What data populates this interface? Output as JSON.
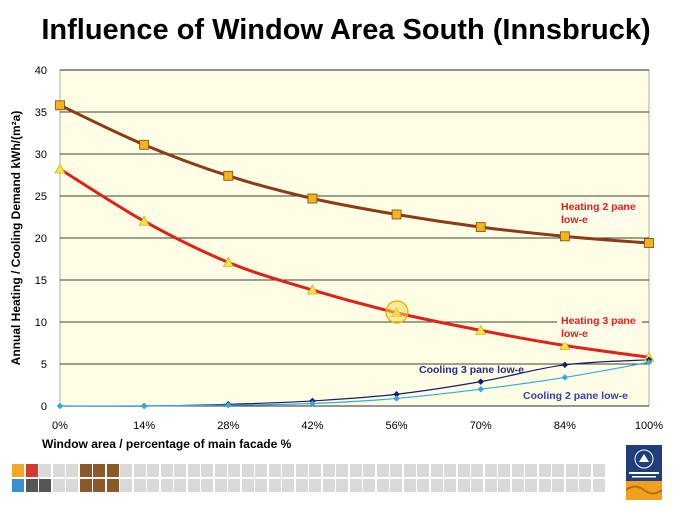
{
  "title": "Influence of Window Area South (Innsbruck)",
  "chart_data": {
    "type": "line",
    "x_ticks": [
      "0%",
      "14%",
      "28%",
      "42%",
      "56%",
      "70%",
      "84%",
      "100%"
    ],
    "xlabel": "Window area / percentage of main facade %",
    "ylabel": "Annual Heating / Cooling Demand kWh/(m²a)",
    "ylim": [
      0,
      40
    ],
    "y_ticks": [
      0,
      5,
      10,
      15,
      20,
      25,
      30,
      35,
      40
    ],
    "grid": true,
    "series": [
      {
        "name": "Heating 2 pane low-e",
        "color": "#8b3a1a",
        "marker": "square",
        "values": [
          35.8,
          31.1,
          27.4,
          24.7,
          22.8,
          21.3,
          20.2,
          19.4
        ]
      },
      {
        "name": "Heating 3 pane low-e",
        "color": "#e0201a",
        "marker": "triangle",
        "values": [
          28.2,
          22.0,
          17.1,
          13.8,
          11.1,
          9.0,
          7.2,
          5.8
        ]
      },
      {
        "name": "Cooling 3 pane low-e",
        "color": "#1a1a6e",
        "marker": "diamond",
        "values": [
          0.0,
          0.0,
          0.2,
          0.6,
          1.4,
          2.9,
          4.9,
          5.5
        ]
      },
      {
        "name": "Cooling 2 pane low-e",
        "color": "#33aadd",
        "marker": "diamond",
        "values": [
          0.0,
          0.0,
          0.1,
          0.3,
          0.9,
          2.0,
          3.4,
          5.2
        ]
      }
    ],
    "annotations": [
      "Heating 2 pane low-e",
      "Heating 3 pane low-e",
      "Cooling 3 pane low-e",
      "Cooling 2 pane low-e"
    ]
  },
  "labels": {
    "heating2": [
      "Heating 2 pane",
      "low-e"
    ],
    "heating3": [
      "Heating 3 pane",
      "low-e"
    ],
    "cooling3": "Cooling 3 pane low-e",
    "cooling2": "Cooling 2 pane low-e"
  },
  "colors": {
    "plot_background": "#fefee4",
    "footer_squares": [
      "#f5a623",
      "#d33a2a",
      "#3a8fd0",
      "#555555",
      "#8b5a2b"
    ]
  },
  "footer": {
    "logo_icon": "university-of-innsbruck-logo"
  }
}
